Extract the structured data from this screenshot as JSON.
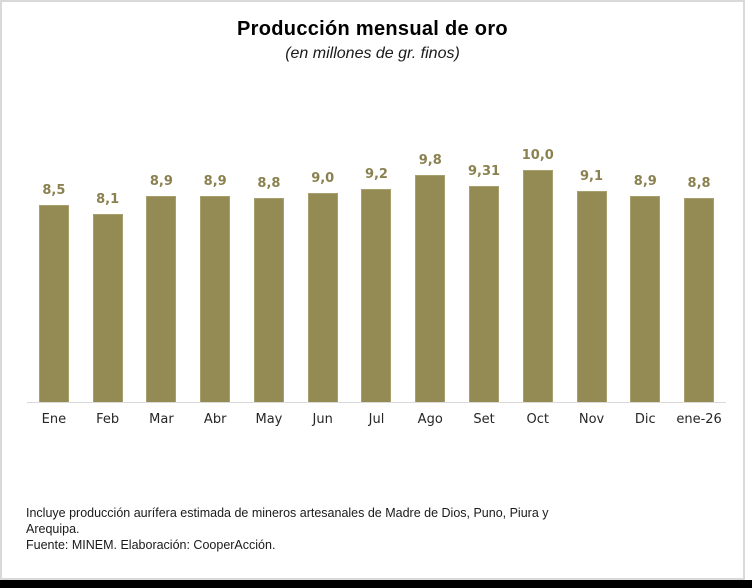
{
  "colors": {
    "bar": "#948A54",
    "bar-border": "#A89F6E",
    "bar-label": "#8B8150",
    "axis": "#D9D9D9",
    "frame": "#D9D9D9",
    "strip": "#000000"
  },
  "chart_data": {
    "type": "bar",
    "title": "Producción mensual de oro",
    "subtitle": "(en millones de gr. finos)",
    "categories": [
      "Ene",
      "Feb",
      "Mar",
      "Abr",
      "May",
      "Jun",
      "Jul",
      "Ago",
      "Set",
      "Oct",
      "Nov",
      "Dic",
      "ene-26"
    ],
    "values": [
      8.5,
      8.1,
      8.9,
      8.9,
      8.8,
      9.0,
      9.2,
      9.8,
      9.31,
      10.0,
      9.1,
      8.9,
      8.8
    ],
    "value_labels": [
      "8,5",
      "8,1",
      "8,9",
      "8,9",
      "8,8",
      "9,0",
      "9,2",
      "9,8",
      "9,31",
      "10,0",
      "9,1",
      "8,9",
      "8,8"
    ],
    "xlabel": "",
    "ylabel": "",
    "ylim": [
      0,
      10
    ],
    "grid": false,
    "legend": false,
    "bar_color": "#948A54",
    "data_label_position": "above-bar"
  },
  "footnote": {
    "lines": [
      "Incluye producción aurífera estimada de mineros artesanales de Madre de Dios, Puno, Piura y",
      "Arequipa.",
      "Fuente: MINEM. Elaboración: CooperAcción."
    ]
  }
}
